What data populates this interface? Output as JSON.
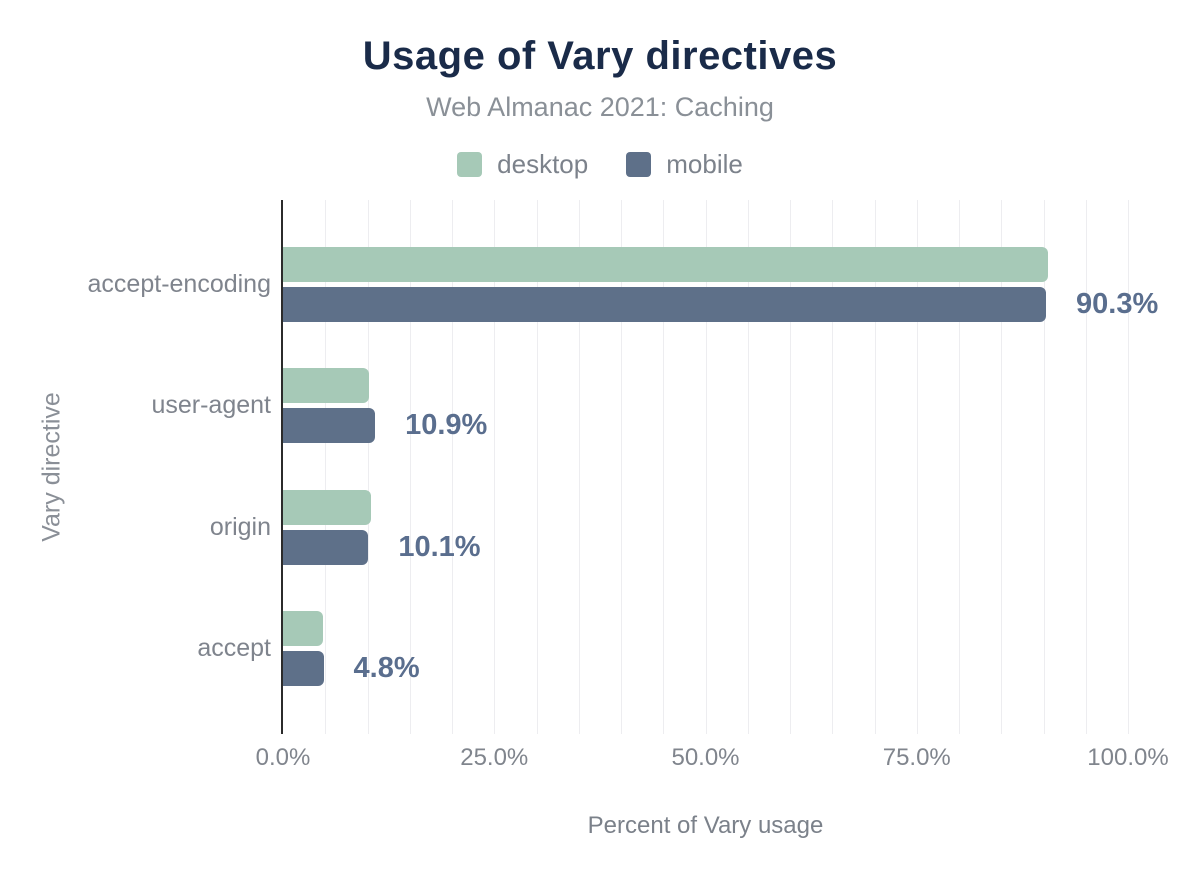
{
  "title": "Usage of Vary directives",
  "subtitle": "Web Almanac 2021: Caching",
  "legend": {
    "items": [
      {
        "label": "desktop",
        "color": "#a6c9b7"
      },
      {
        "label": "mobile",
        "color": "#5e7089"
      }
    ]
  },
  "colors": {
    "title": "#1a2b49",
    "desktop_bar": "#a6c9b7",
    "mobile_bar": "#5e7089",
    "value_label": "#5a6e8e",
    "axis_text": "#7f848d",
    "gridline": "#ededf0",
    "axis_line": "#2b2b2b"
  },
  "chart_data": {
    "type": "bar",
    "orientation": "horizontal",
    "title": "Usage of Vary directives",
    "subtitle": "Web Almanac 2021: Caching",
    "xlabel": "Percent of Vary usage",
    "ylabel": "Vary directive",
    "xlim": [
      0,
      100
    ],
    "grid": true,
    "grid_step": 5,
    "legend_position": "top",
    "categories": [
      "accept-encoding",
      "user-agent",
      "origin",
      "accept"
    ],
    "series": [
      {
        "name": "desktop",
        "color": "#a6c9b7",
        "values": [
          90.5,
          10.2,
          10.4,
          4.7
        ]
      },
      {
        "name": "mobile",
        "color": "#5e7089",
        "values": [
          90.3,
          10.9,
          10.1,
          4.8
        ]
      }
    ],
    "value_labels": [
      "90.3%",
      "10.9%",
      "10.1%",
      "4.8%"
    ],
    "value_label_series": "mobile",
    "x_ticks": [
      {
        "label": "0.0%",
        "value": 0
      },
      {
        "label": "25.0%",
        "value": 25
      },
      {
        "label": "50.0%",
        "value": 50
      },
      {
        "label": "75.0%",
        "value": 75
      },
      {
        "label": "100.0%",
        "value": 100
      }
    ]
  }
}
